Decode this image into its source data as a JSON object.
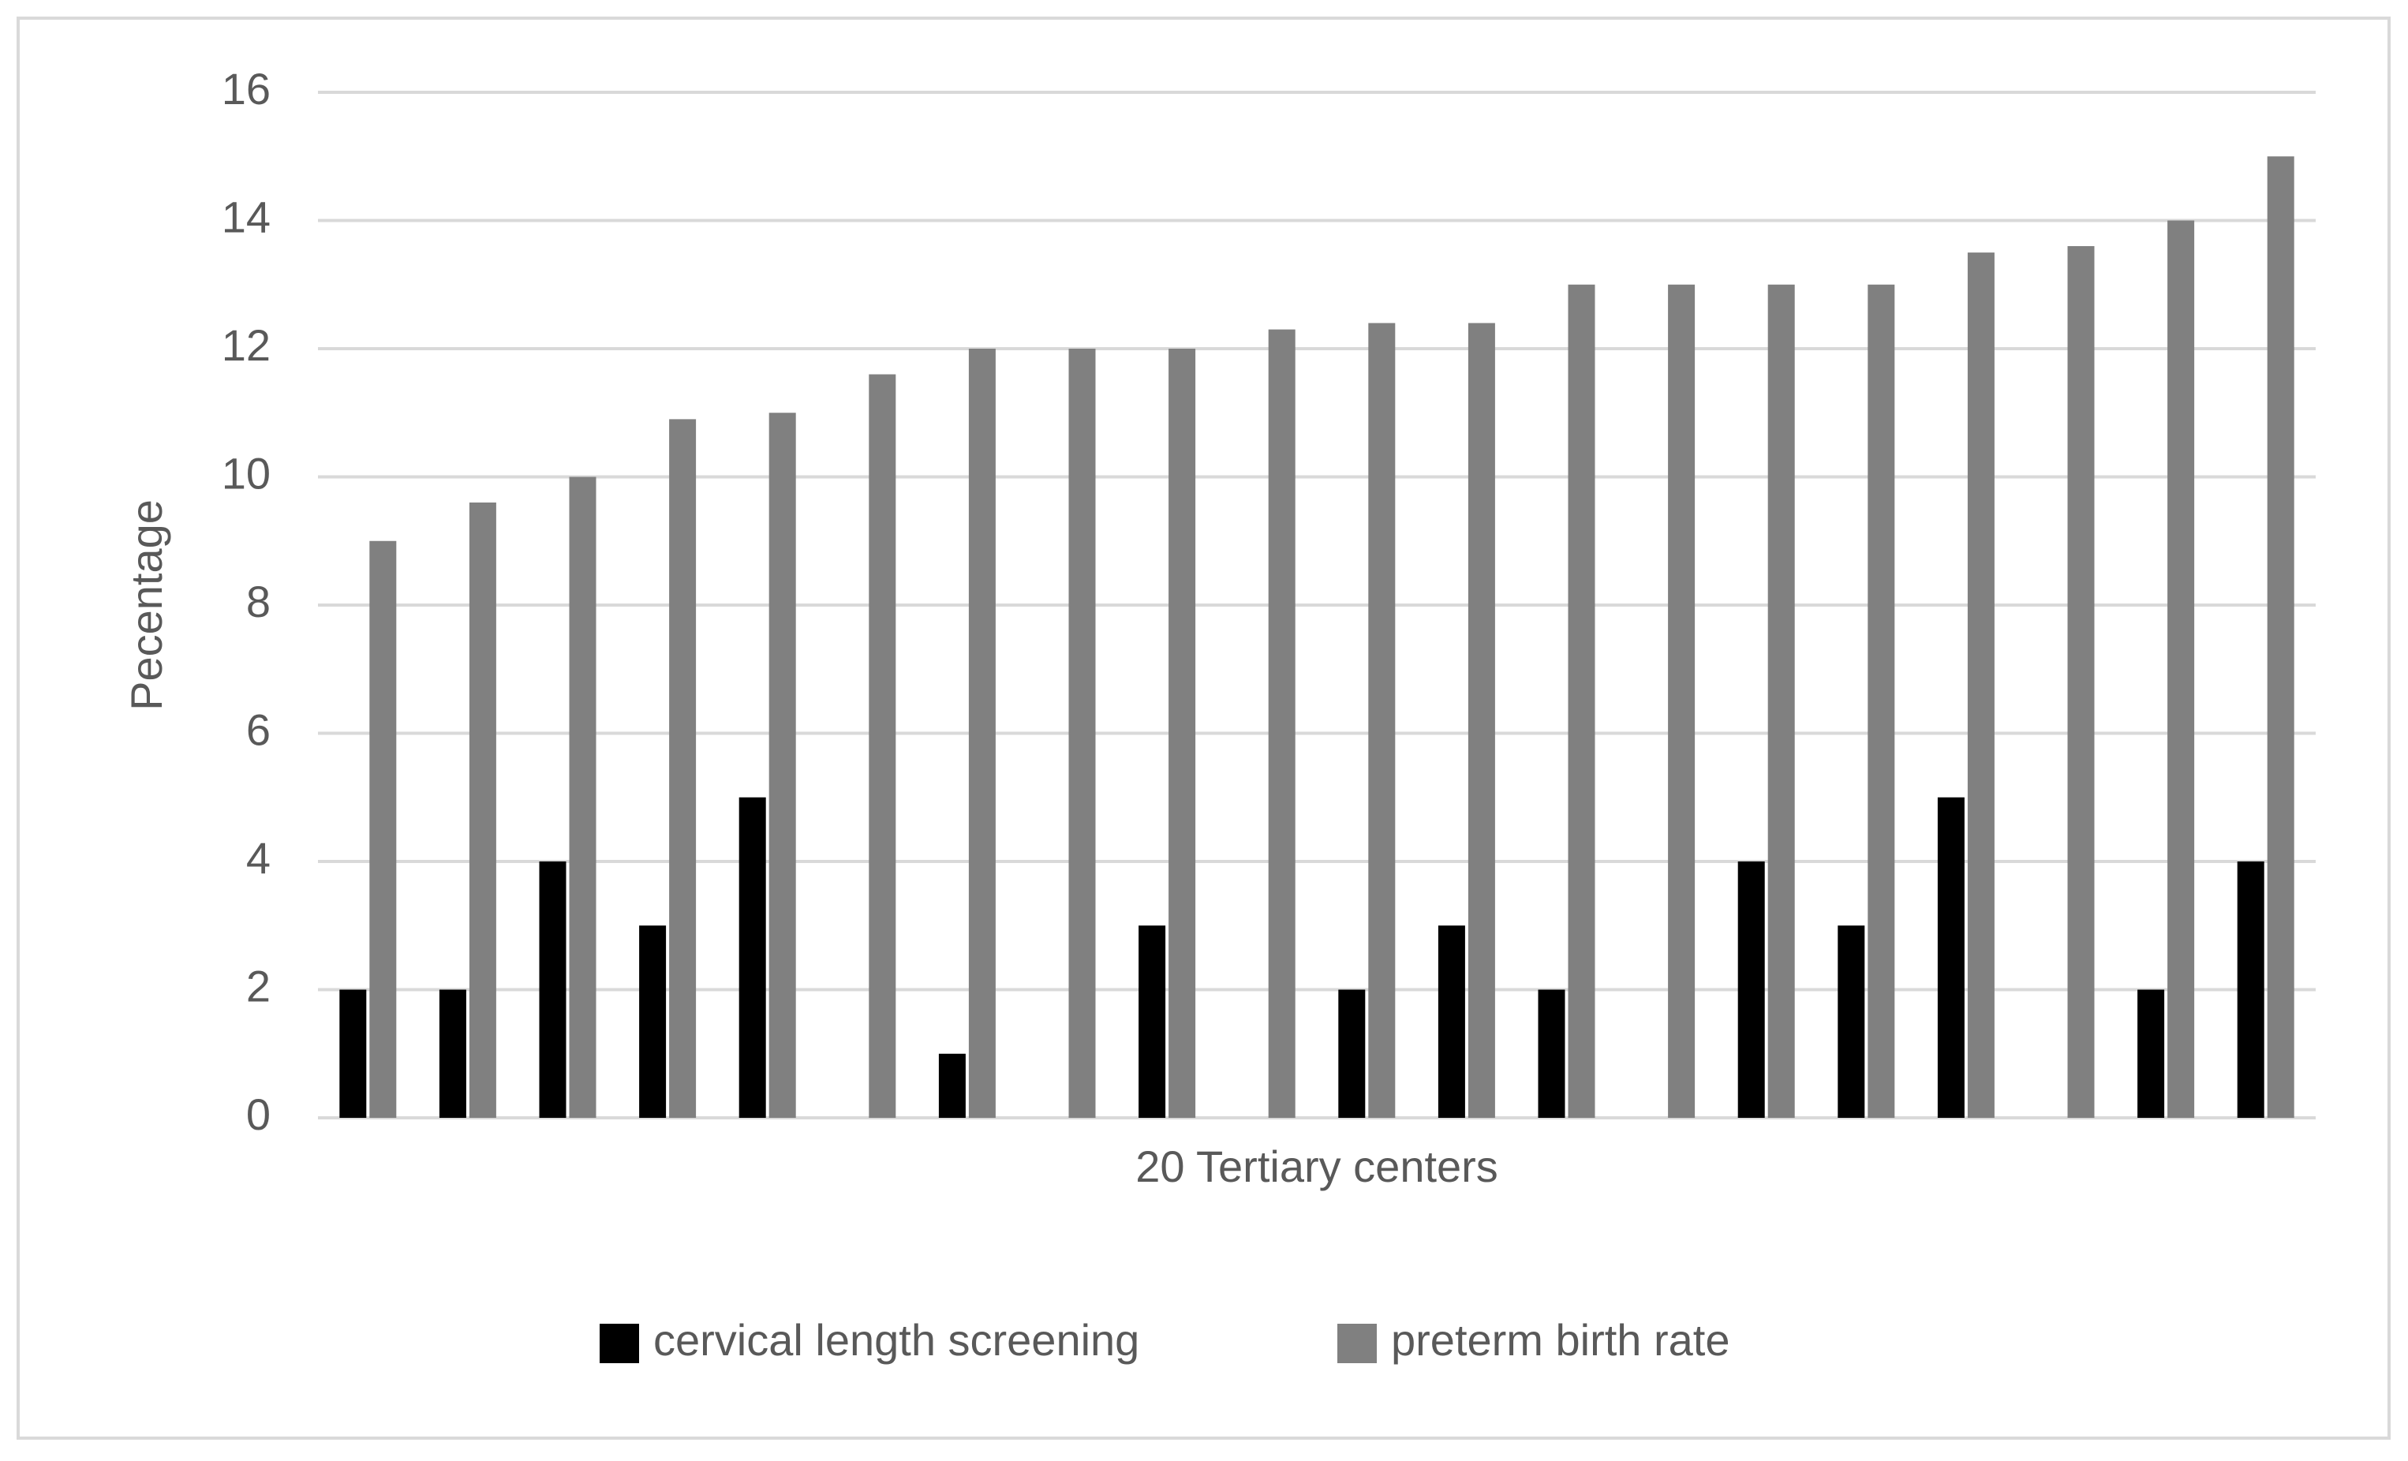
{
  "chart_data": {
    "type": "bar",
    "y_label": "Pecentage",
    "x_label": "20 Tertiary centers",
    "categories": [
      null,
      null,
      null,
      null,
      null,
      null,
      null,
      null,
      null,
      null,
      null,
      null,
      null,
      null,
      null,
      null,
      null,
      null,
      null,
      null
    ],
    "series": [
      {
        "name": "cervical length screening",
        "color": "#000000",
        "values": [
          2,
          2,
          4,
          3,
          5,
          0,
          1,
          0,
          3,
          0,
          2,
          3,
          2,
          0,
          4,
          3,
          5,
          0,
          2,
          4
        ]
      },
      {
        "name": "preterm birth rate",
        "color": "#808080",
        "values": [
          9,
          9.6,
          10,
          10.9,
          11,
          11.6,
          12,
          12,
          12,
          12.3,
          12.4,
          12.4,
          13,
          13,
          13,
          13,
          13.5,
          13.6,
          14,
          15
        ]
      }
    ],
    "ylim": [
      0,
      16
    ],
    "yticks": [
      0,
      2,
      4,
      6,
      8,
      10,
      12,
      14,
      16
    ],
    "grid": true,
    "legend": "bottom"
  }
}
